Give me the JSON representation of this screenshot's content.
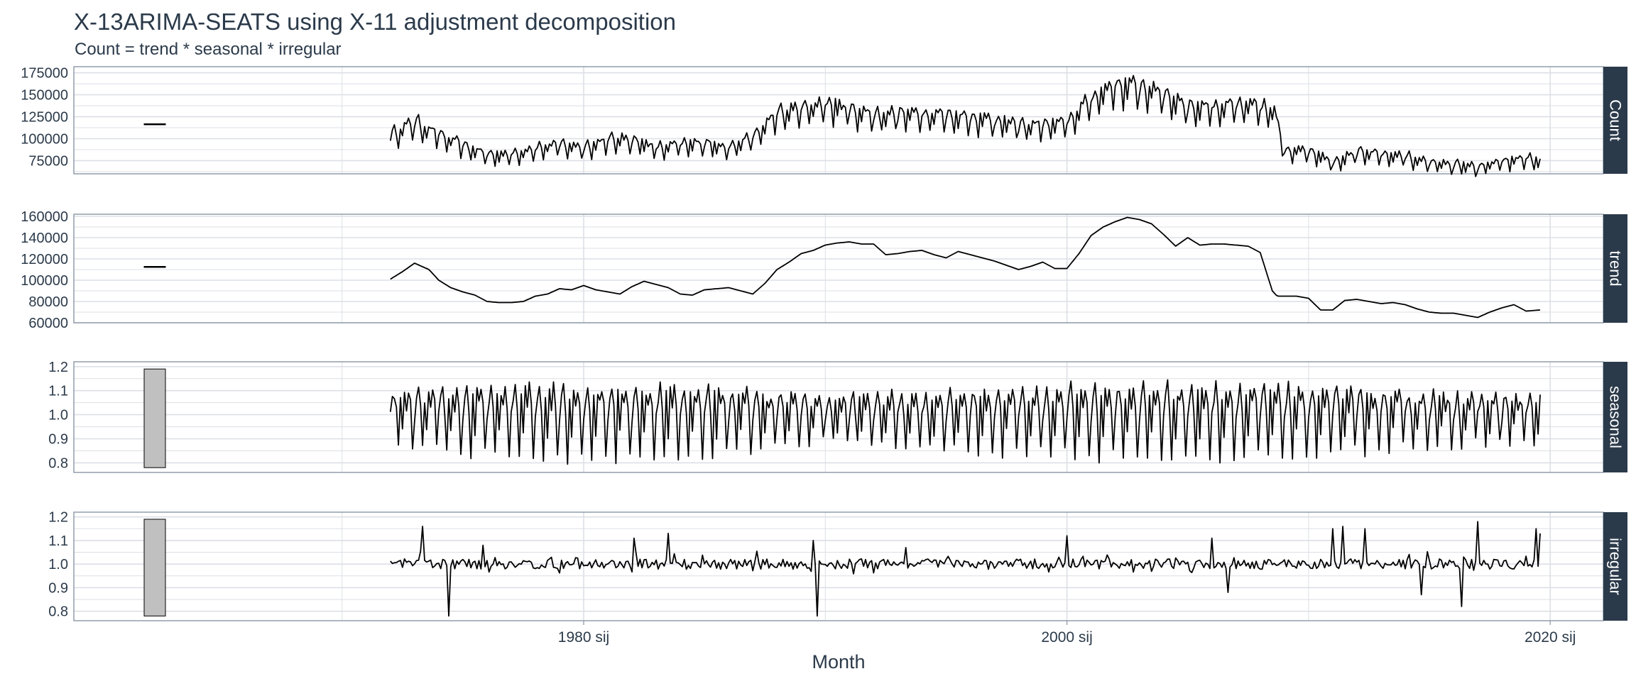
{
  "chart_data": {
    "type": "line",
    "title": "X-13ARIMA-SEATS using X-11 adjustment decomposition",
    "subtitle": "Count = trend * seasonal * irregular",
    "xlabel": "Month",
    "x_ticks": [
      "1980 sij",
      "2000 sij",
      "2020 sij"
    ],
    "x_tick_years": [
      1980,
      2000,
      2020
    ],
    "xlim": [
      1958.9,
      2022.2
    ],
    "data_range": [
      1972.0,
      2019.58
    ],
    "grid": true,
    "colors": {
      "line": "#000000",
      "strip": "#2b3a4a",
      "strip_text": "#ffffff",
      "range_bar": "#c0c0c0",
      "grid": "#dcdfe5",
      "text": "#2b3a4a"
    },
    "panels": [
      {
        "name": "Count",
        "ylim": [
          60000,
          182000
        ],
        "y_ticks": [
          75000,
          100000,
          125000,
          150000,
          175000
        ],
        "y_tick_labels": [
          "75000",
          "100000",
          "125000",
          "150000",
          "175000"
        ],
        "range_bar": [
          116000,
          117000
        ],
        "profile": {
          "years": [
            1972.0,
            1973.0,
            1974.0,
            1975.0,
            1976.0,
            1977.0,
            1978.0,
            1979.0,
            1980.0,
            1981.0,
            1982.0,
            1983.0,
            1984.0,
            1985.0,
            1986.0,
            1987.0,
            1988.0,
            1990.0,
            1992.0,
            1994.0,
            1996.0,
            1997.0,
            1998.0,
            1999.0,
            2000.0,
            2001.0,
            2002.0,
            2003.0,
            2004.0,
            2005.0,
            2006.0,
            2007.0,
            2008.0,
            2008.6,
            2009.0,
            2010.0,
            2011.0,
            2012.0,
            2013.0,
            2014.0,
            2015.0,
            2016.0,
            2017.0,
            2018.0,
            2019.0,
            2019.58
          ],
          "levels": [
            101000,
            116000,
            102000,
            90000,
            80000,
            80000,
            87000,
            91000,
            88000,
            96000,
            97000,
            87000,
            91000,
            93000,
            88000,
            99000,
            125000,
            136000,
            124000,
            126000,
            121000,
            118000,
            112000,
            113000,
            115000,
            142000,
            157000,
            155000,
            148000,
            133000,
            133000,
            134000,
            133000,
            126000,
            85000,
            85000,
            72000,
            82000,
            80000,
            78000,
            71000,
            69000,
            66000,
            72000,
            76000,
            73000
          ]
        },
        "seasonal_amp": 0.12,
        "noise_amp": 0.03
      },
      {
        "name": "trend",
        "ylim": [
          60000,
          162000
        ],
        "y_ticks": [
          60000,
          80000,
          100000,
          120000,
          140000,
          160000
        ],
        "y_tick_labels": [
          "60000",
          "80000",
          "100000",
          "120000",
          "140000",
          "160000"
        ],
        "range_bar": [
          112000,
          113000
        ],
        "values": {
          "years": [
            1972.0,
            1972.5,
            1973.0,
            1973.6,
            1974.0,
            1974.5,
            1975.0,
            1975.5,
            1976.0,
            1976.5,
            1977.0,
            1977.5,
            1978.0,
            1978.5,
            1979.0,
            1979.5,
            1980.0,
            1980.5,
            1981.0,
            1981.5,
            1982.0,
            1982.5,
            1983.0,
            1983.5,
            1984.0,
            1984.5,
            1985.0,
            1985.5,
            1986.0,
            1986.5,
            1987.0,
            1987.5,
            1988.0,
            1988.5,
            1989.0,
            1989.5,
            1990.0,
            1990.5,
            1991.0,
            1991.5,
            1992.0,
            1992.5,
            1993.0,
            1993.5,
            1994.0,
            1994.5,
            1995.0,
            1995.5,
            1996.0,
            1996.5,
            1997.0,
            1997.5,
            1998.0,
            1998.5,
            1999.0,
            1999.5,
            2000.0,
            2000.5,
            2001.0,
            2001.5,
            2002.0,
            2002.5,
            2003.0,
            2003.5,
            2004.0,
            2004.5,
            2005.0,
            2005.5,
            2006.0,
            2006.5,
            2007.0,
            2007.5,
            2008.0,
            2008.5,
            2008.7,
            2009.0,
            2009.5,
            2010.0,
            2010.5,
            2011.0,
            2011.5,
            2012.0,
            2012.5,
            2013.0,
            2013.5,
            2014.0,
            2014.5,
            2015.0,
            2015.5,
            2016.0,
            2016.5,
            2017.0,
            2017.5,
            2018.0,
            2018.5,
            2019.0,
            2019.58
          ],
          "values": [
            101000,
            108000,
            116000,
            110000,
            100000,
            93000,
            89000,
            86000,
            80000,
            79000,
            79000,
            80000,
            85000,
            87000,
            92000,
            91000,
            95000,
            91000,
            89000,
            87000,
            94000,
            99000,
            96000,
            93000,
            87000,
            86000,
            91000,
            92000,
            93000,
            90000,
            87000,
            97000,
            110000,
            117000,
            125000,
            128000,
            133000,
            135000,
            136000,
            134000,
            134000,
            124000,
            125000,
            127000,
            128000,
            124000,
            121000,
            127000,
            124000,
            121000,
            118000,
            114000,
            110000,
            113000,
            117000,
            111000,
            111000,
            125000,
            142000,
            150000,
            155000,
            159000,
            157000,
            153000,
            143000,
            132000,
            140000,
            133000,
            134000,
            134000,
            133000,
            132000,
            126000,
            90000,
            85000,
            85000,
            85000,
            83000,
            72000,
            72000,
            81000,
            82000,
            80000,
            78000,
            79000,
            77000,
            73000,
            70000,
            69000,
            69000,
            67000,
            65000,
            70000,
            74000,
            77000,
            71000,
            72000
          ]
        }
      },
      {
        "name": "seasonal",
        "ylim": [
          0.76,
          1.22
        ],
        "y_ticks": [
          0.8,
          0.9,
          1.0,
          1.1,
          1.2
        ],
        "y_tick_labels": [
          "0.8",
          "0.9",
          "1.0",
          "1.1",
          "1.2"
        ],
        "range_bar": [
          0.78,
          1.19
        ],
        "pattern": [
          0.99,
          1.06,
          1.1,
          1.02,
          0.85,
          1.07,
          0.93,
          1.08,
          1.03,
          1.09,
          1.04,
          0.86
        ],
        "amp_by_year": {
          "years": [
            1972,
            1978,
            1985,
            1990,
            1998,
            2004,
            2010,
            2015,
            2019.58
          ],
          "scale": [
            0.9,
            1.3,
            1.2,
            0.8,
            1.1,
            1.25,
            1.15,
            0.9,
            0.8
          ]
        }
      },
      {
        "name": "irregular",
        "ylim": [
          0.76,
          1.22
        ],
        "y_ticks": [
          0.8,
          0.9,
          1.0,
          1.1,
          1.2
        ],
        "y_tick_labels": [
          "0.8",
          "0.9",
          "1.0",
          "1.1",
          "1.2"
        ],
        "range_bar": [
          0.78,
          1.19
        ],
        "base": 1.0,
        "noise_amp": 0.022,
        "spikes": [
          [
            1973.3,
            1.16
          ],
          [
            1974.4,
            0.78
          ],
          [
            1975.8,
            1.08
          ],
          [
            1982.1,
            1.11
          ],
          [
            1983.5,
            1.13
          ],
          [
            1989.5,
            1.1
          ],
          [
            1989.7,
            0.78
          ],
          [
            1993.3,
            1.07
          ],
          [
            2000.0,
            1.12
          ],
          [
            2006.0,
            1.11
          ],
          [
            2006.7,
            0.88
          ],
          [
            2011.0,
            1.15
          ],
          [
            2011.4,
            1.16
          ],
          [
            2012.3,
            1.15
          ],
          [
            2014.7,
            0.87
          ],
          [
            2016.3,
            0.82
          ],
          [
            2017.0,
            1.18
          ],
          [
            2019.4,
            1.15
          ],
          [
            2019.55,
            1.13
          ]
        ]
      }
    ]
  }
}
